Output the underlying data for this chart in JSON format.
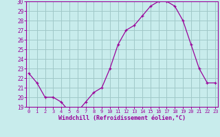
{
  "x": [
    0,
    1,
    2,
    3,
    4,
    5,
    6,
    7,
    8,
    9,
    10,
    11,
    12,
    13,
    14,
    15,
    16,
    17,
    18,
    19,
    20,
    21,
    22,
    23
  ],
  "y": [
    22.5,
    21.5,
    20.0,
    20.0,
    19.5,
    18.5,
    18.5,
    19.5,
    20.5,
    21.0,
    23.0,
    25.5,
    27.0,
    27.5,
    28.5,
    29.5,
    30.0,
    30.0,
    29.5,
    28.0,
    25.5,
    23.0,
    21.5,
    21.5
  ],
  "line_color": "#990099",
  "marker": "+",
  "bg_color": "#c8ecec",
  "grid_color": "#a0c8c8",
  "xlabel": "Windchill (Refroidissement éolien,°C)",
  "xlabel_color": "#990099",
  "tick_color": "#990099",
  "ylim": [
    19,
    30
  ],
  "yticks": [
    19,
    20,
    21,
    22,
    23,
    24,
    25,
    26,
    27,
    28,
    29,
    30
  ],
  "xticks": [
    0,
    1,
    2,
    3,
    4,
    5,
    6,
    7,
    8,
    9,
    10,
    11,
    12,
    13,
    14,
    15,
    16,
    17,
    18,
    19,
    20,
    21,
    22,
    23
  ],
  "spine_color": "#990099"
}
